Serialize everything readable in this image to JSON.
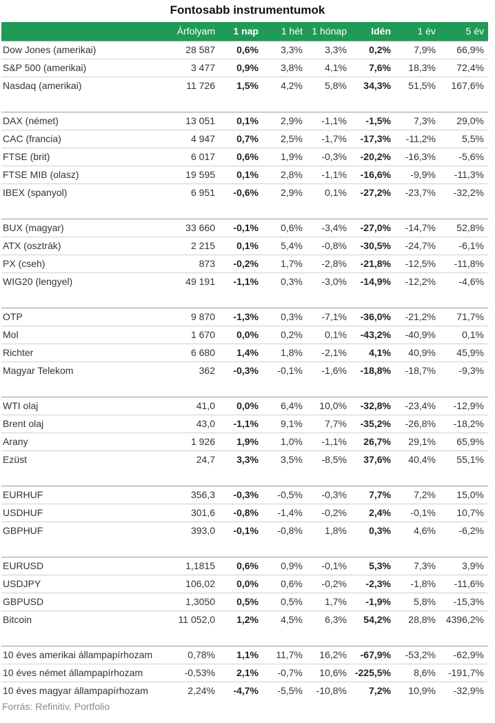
{
  "title": "Fontosabb instrumentumok",
  "columns": [
    "",
    "Árfolyam",
    "1 nap",
    "1 hét",
    "1 hónap",
    "Idén",
    "1 év",
    "5 év"
  ],
  "groups": [
    [
      [
        "Dow Jones (amerikai)",
        "28 587",
        "0,6%",
        "3,3%",
        "3,3%",
        "0,2%",
        "7,9%",
        "66,9%"
      ],
      [
        "S&P 500 (amerikai)",
        "3 477",
        "0,9%",
        "3,8%",
        "4,1%",
        "7,6%",
        "18,3%",
        "72,4%"
      ],
      [
        "Nasdaq (amerikai)",
        "11 726",
        "1,5%",
        "4,2%",
        "5,8%",
        "34,3%",
        "51,5%",
        "167,6%"
      ]
    ],
    [
      [
        "DAX (német)",
        "13 051",
        "0,1%",
        "2,9%",
        "-1,1%",
        "-1,5%",
        "7,3%",
        "29,0%"
      ],
      [
        "CAC (francia)",
        "4 947",
        "0,7%",
        "2,5%",
        "-1,7%",
        "-17,3%",
        "-11,2%",
        "5,5%"
      ],
      [
        "FTSE (brit)",
        "6 017",
        "0,6%",
        "1,9%",
        "-0,3%",
        "-20,2%",
        "-16,3%",
        "-5,6%"
      ],
      [
        "FTSE MIB (olasz)",
        "19 595",
        "0,1%",
        "2,8%",
        "-1,1%",
        "-16,6%",
        "-9,9%",
        "-11,3%"
      ],
      [
        "IBEX (spanyol)",
        "6 951",
        "-0,6%",
        "2,9%",
        "0,1%",
        "-27,2%",
        "-23,7%",
        "-32,2%"
      ]
    ],
    [
      [
        "BUX (magyar)",
        "33 660",
        "-0,1%",
        "0,6%",
        "-3,4%",
        "-27,0%",
        "-14,7%",
        "52,8%"
      ],
      [
        "ATX (osztrák)",
        "2 215",
        "0,1%",
        "5,4%",
        "-0,8%",
        "-30,5%",
        "-24,7%",
        "-6,1%"
      ],
      [
        "PX (cseh)",
        "873",
        "-0,2%",
        "1,7%",
        "-2,8%",
        "-21,8%",
        "-12,5%",
        "-11,8%"
      ],
      [
        "WIG20 (lengyel)",
        "49 191",
        "-1,1%",
        "0,3%",
        "-3,0%",
        "-14,9%",
        "-12,2%",
        "-4,6%"
      ]
    ],
    [
      [
        "OTP",
        "9 870",
        "-1,3%",
        "0,3%",
        "-7,1%",
        "-36,0%",
        "-21,2%",
        "71,7%"
      ],
      [
        "Mol",
        "1 670",
        "0,0%",
        "0,2%",
        "0,1%",
        "-43,2%",
        "-40,9%",
        "0,1%"
      ],
      [
        "Richter",
        "6 680",
        "1,4%",
        "1,8%",
        "-2,1%",
        "4,1%",
        "40,9%",
        "45,9%"
      ],
      [
        "Magyar Telekom",
        "362",
        "-0,3%",
        "-0,1%",
        "-1,6%",
        "-18,8%",
        "-18,7%",
        "-9,3%"
      ]
    ],
    [
      [
        "WTI olaj",
        "41,0",
        "0,0%",
        "6,4%",
        "10,0%",
        "-32,8%",
        "-23,4%",
        "-12,9%"
      ],
      [
        "Brent olaj",
        "43,0",
        "-1,1%",
        "9,1%",
        "7,7%",
        "-35,2%",
        "-26,8%",
        "-18,2%"
      ],
      [
        "Arany",
        "1 926",
        "1,9%",
        "1,0%",
        "-1,1%",
        "26,7%",
        "29,1%",
        "65,9%"
      ],
      [
        "Ezüst",
        "24,7",
        "3,3%",
        "3,5%",
        "-8,5%",
        "37,6%",
        "40,4%",
        "55,1%"
      ]
    ],
    [
      [
        "EURHUF",
        "356,3",
        "-0,3%",
        "-0,5%",
        "-0,3%",
        "7,7%",
        "7,2%",
        "15,0%"
      ],
      [
        "USDHUF",
        "301,6",
        "-0,8%",
        "-1,4%",
        "-0,2%",
        "2,4%",
        "-0,1%",
        "10,7%"
      ],
      [
        "GBPHUF",
        "393,0",
        "-0,1%",
        "-0,8%",
        "1,8%",
        "0,3%",
        "4,6%",
        "-6,2%"
      ]
    ],
    [
      [
        "EURUSD",
        "1,1815",
        "0,6%",
        "0,9%",
        "-0,1%",
        "5,3%",
        "7,3%",
        "3,9%"
      ],
      [
        "USDJPY",
        "106,02",
        "0,0%",
        "0,6%",
        "-0,2%",
        "-2,3%",
        "-1,8%",
        "-11,6%"
      ],
      [
        "GBPUSD",
        "1,3050",
        "0,5%",
        "0,5%",
        "1,7%",
        "-1,9%",
        "5,8%",
        "-15,3%"
      ],
      [
        "Bitcoin",
        "11 052,0",
        "1,2%",
        "4,5%",
        "6,3%",
        "54,2%",
        "28,8%",
        "4396,2%"
      ]
    ],
    [
      [
        "10 éves amerikai állampapírhozam",
        "0,78%",
        "1,1%",
        "11,7%",
        "16,2%",
        "-67,9%",
        "-53,2%",
        "-62,9%"
      ],
      [
        "10 éves német állampapírhozam",
        "-0,53%",
        "2,1%",
        "-0,7%",
        "10,6%",
        "-225,5%",
        "8,6%",
        "-191,7%"
      ],
      [
        "10 éves magyar állampapírhozam",
        "2,24%",
        "-4,7%",
        "-5,5%",
        "-10,8%",
        "7,2%",
        "10,9%",
        "-32,9%"
      ]
    ]
  ],
  "source": "Forrás: Refinitiv, Portfolio",
  "colors": {
    "header_bg": "#1f9a57",
    "header_text": "#ffffff"
  }
}
